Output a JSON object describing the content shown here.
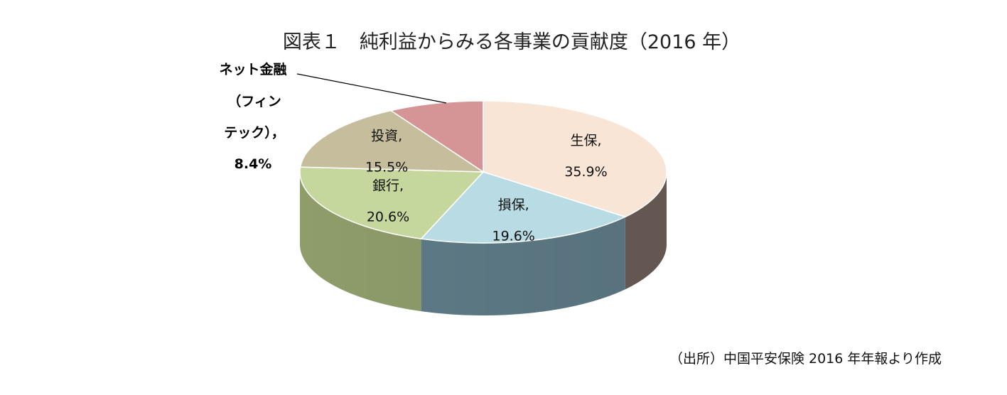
{
  "chart_data": {
    "type": "pie",
    "title": "図表１　純利益からみる各事業の貢献度（2016 年）",
    "slices": [
      {
        "category": "生保",
        "value": 35.9,
        "value_label": "35.9%",
        "color": "#f8e5d6",
        "side_color": "#6d5e58"
      },
      {
        "category": "損保",
        "value": 19.6,
        "value_label": "19.6%",
        "color": "#b9dbe4",
        "side_color": "#5f7c88"
      },
      {
        "category": "銀行",
        "value": 20.6,
        "value_label": "20.6%",
        "color": "#c6d79e",
        "side_color": "#8e9d6a"
      },
      {
        "category": "投資",
        "value": 15.5,
        "value_label": "15.5%",
        "color": "#c5bd9b",
        "side_color": "#8c8468"
      },
      {
        "category": "ネット金融（フィンテック）",
        "value": 8.4,
        "value_label": "8.4%",
        "color": "#d59596",
        "side_color": "#8f5b5c"
      }
    ],
    "callout_lines": [
      "ネット金融",
      "（フィン",
      "テック），",
      "8.4%"
    ],
    "legend": "none",
    "grid": false
  },
  "source_note": "（出所）中国平安保険 2016 年年報より作成"
}
